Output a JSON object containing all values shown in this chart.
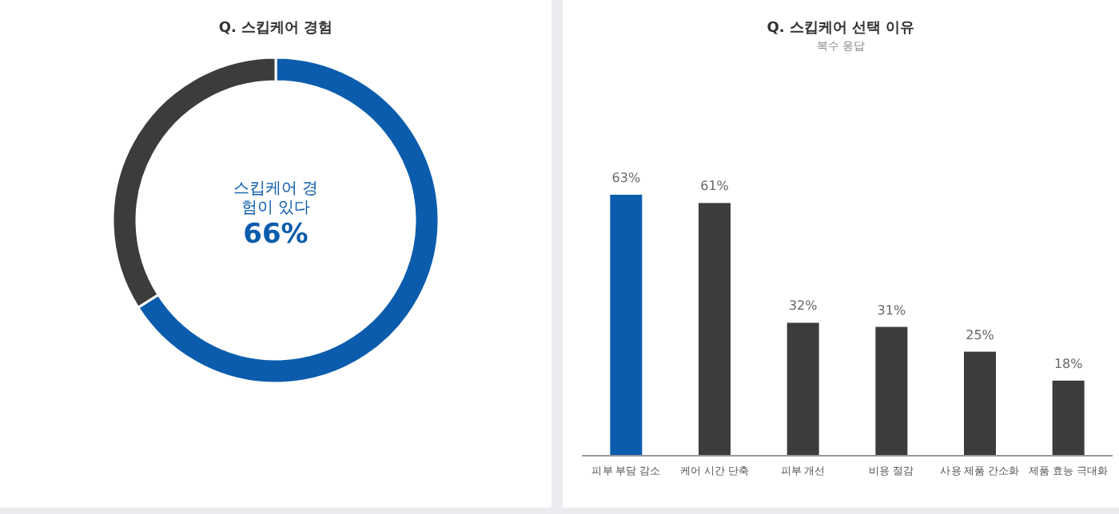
{
  "chart_data": [
    {
      "type": "donut",
      "title": "Q. 스킵케어 경험",
      "categories": [
        "스킵케어 경험이 있다",
        null
      ],
      "values": [
        66,
        34
      ],
      "colors": [
        "#0b5cad",
        "#3c3c3c"
      ],
      "value_labels": [
        "66%",
        null
      ]
    },
    {
      "type": "bar",
      "title": "Q. 스킵케어 선택 이유",
      "subtitle": "복수 응답",
      "categories": [
        "피부 부담 감소",
        "케어 시간 단축",
        "피부 개선",
        "비용 절감",
        "사용 제품 간소화",
        "제품 효능 극대화"
      ],
      "values": [
        63,
        61,
        32,
        31,
        25,
        18
      ],
      "colors": [
        "#0b5cad",
        "#3c3c3c",
        "#3c3c3c",
        "#3c3c3c",
        "#3c3c3c",
        "#3c3c3c"
      ],
      "value_labels": [
        "63%",
        "61%",
        "32%",
        "31%",
        "25%",
        "18%"
      ]
    }
  ]
}
